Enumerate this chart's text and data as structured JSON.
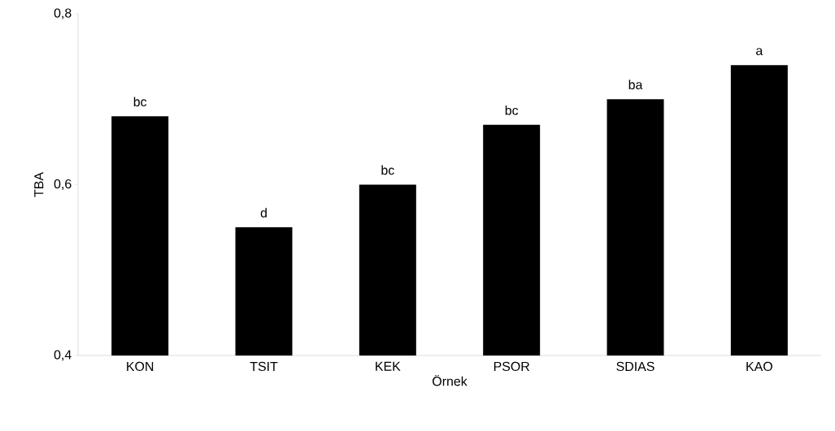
{
  "chart_data": {
    "type": "bar",
    "xlabel": "Örnek",
    "ylabel": "TBA",
    "categories": [
      "KON",
      "TSIT",
      "KEK",
      "PSOR",
      "SDIAS",
      "KAO"
    ],
    "values": [
      0.68,
      0.55,
      0.6,
      0.67,
      0.7,
      0.74
    ],
    "color": "#000000",
    "ylim": [
      0.4,
      0.8
    ],
    "yticks": [
      {
        "value": 0.4,
        "label": "0,4"
      },
      {
        "value": 0.6,
        "label": "0,6"
      },
      {
        "value": 0.8,
        "label": "0,8"
      }
    ],
    "annotations": [
      {
        "text": "bc",
        "x": "KON",
        "y": 0.68
      },
      {
        "text": "d",
        "x": "TSIT",
        "y": 0.55
      },
      {
        "text": "bc",
        "x": "KEK",
        "y": 0.6
      },
      {
        "text": "bc",
        "x": "PSOR",
        "y": 0.67
      },
      {
        "text": "ba",
        "x": "SDIAS",
        "y": 0.7
      },
      {
        "text": "a",
        "x": "KAO",
        "y": 0.74
      }
    ]
  }
}
